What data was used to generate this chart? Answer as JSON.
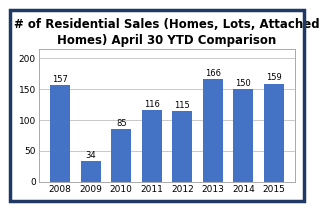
{
  "title": "# of Residential Sales (Homes, Lots, Attached\nHomes) April 30 YTD Comparison",
  "categories": [
    "2008",
    "2009",
    "2010",
    "2011",
    "2012",
    "2013",
    "2014",
    "2015"
  ],
  "values": [
    157,
    34,
    85,
    116,
    115,
    166,
    150,
    159
  ],
  "bar_color": "#4472c4",
  "ylim": [
    0,
    215
  ],
  "yticks": [
    0,
    50,
    100,
    150,
    200
  ],
  "plot_bg_color": "#ffffff",
  "fig_bg_color": "#ffffff",
  "border_color": "#1f3864",
  "grid_color": "#c0c0c0",
  "title_fontsize": 8.5,
  "label_fontsize": 6.5,
  "value_fontsize": 6.0,
  "title_fontweight": "bold"
}
